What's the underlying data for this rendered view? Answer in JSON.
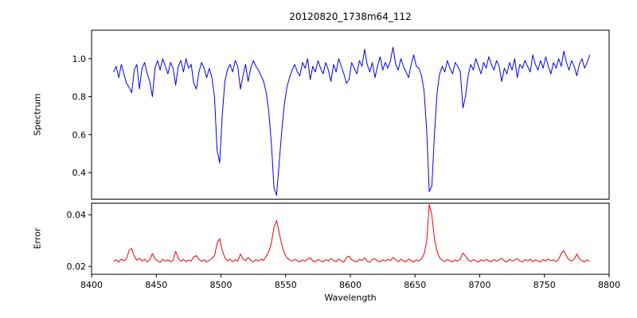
{
  "chart_data": {
    "type": "line",
    "title": "20120820_1738m64_112",
    "xlabel": "Wavelength",
    "xlim": [
      8400,
      8800
    ],
    "x_ticks": [
      8400,
      8450,
      8500,
      8550,
      8600,
      8650,
      8700,
      8750,
      8800
    ],
    "x_start": 8417,
    "x_step": 2,
    "legend": "none",
    "grid": false,
    "subplots": [
      {
        "ylabel": "Spectrum",
        "color": "#0000ee",
        "ylim": [
          0.26,
          1.15
        ],
        "y_ticks": [
          0.4,
          0.6,
          0.8,
          1.0
        ],
        "y_tick_labels": [
          "0.4",
          "0.6",
          "0.8",
          "1.0"
        ],
        "values": [
          0.93,
          0.96,
          0.9,
          0.97,
          0.92,
          0.87,
          0.85,
          0.82,
          0.94,
          0.97,
          0.84,
          0.95,
          0.98,
          0.92,
          0.88,
          0.8,
          0.95,
          0.99,
          0.94,
          1.0,
          0.96,
          0.92,
          0.98,
          0.95,
          0.86,
          0.96,
          0.99,
          0.93,
          1.0,
          0.95,
          0.97,
          0.87,
          0.84,
          0.93,
          0.98,
          0.95,
          0.9,
          0.95,
          0.9,
          0.8,
          0.52,
          0.45,
          0.7,
          0.88,
          0.94,
          0.97,
          0.93,
          0.99,
          0.96,
          0.84,
          0.91,
          0.97,
          0.88,
          0.95,
          0.99,
          0.96,
          0.94,
          0.91,
          0.88,
          0.82,
          0.72,
          0.55,
          0.32,
          0.28,
          0.45,
          0.62,
          0.76,
          0.85,
          0.9,
          0.94,
          0.97,
          0.93,
          0.91,
          0.98,
          0.95,
          1.0,
          0.89,
          0.96,
          0.93,
          0.99,
          0.95,
          0.92,
          0.98,
          0.94,
          0.88,
          0.97,
          0.93,
          1.0,
          0.96,
          0.92,
          0.87,
          0.89,
          0.98,
          0.95,
          0.92,
          0.99,
          0.96,
          1.05,
          0.97,
          0.93,
          0.98,
          0.9,
          0.96,
          1.01,
          0.94,
          0.98,
          0.95,
          0.99,
          1.06,
          0.97,
          0.94,
          1.0,
          0.96,
          0.93,
          0.9,
          0.97,
          1.02,
          0.96,
          0.95,
          0.91,
          0.83,
          0.62,
          0.3,
          0.33,
          0.6,
          0.82,
          0.92,
          0.96,
          0.93,
          0.99,
          0.95,
          0.92,
          0.98,
          0.96,
          0.93,
          0.74,
          0.8,
          0.91,
          0.97,
          0.94,
          1.0,
          0.96,
          0.92,
          0.98,
          0.95,
          1.01,
          0.97,
          0.94,
          0.99,
          0.96,
          0.88,
          0.95,
          0.92,
          0.98,
          0.94,
          1.0,
          0.9,
          0.97,
          0.95,
          0.99,
          0.96,
          0.93,
          1.02,
          0.97,
          0.94,
          0.99,
          0.95,
          1.01,
          0.96,
          0.92,
          0.98,
          0.95,
          1.0,
          0.96,
          1.04,
          0.98,
          0.94,
          0.99,
          0.96,
          0.91,
          0.97,
          1.0,
          0.95,
          0.98,
          1.02
        ]
      },
      {
        "ylabel": "Error",
        "color": "#ee0000",
        "ylim": [
          0.017,
          0.0445
        ],
        "y_ticks": [
          0.02,
          0.04
        ],
        "y_tick_labels": [
          "0.02",
          "0.04"
        ],
        "values": [
          0.022,
          0.0226,
          0.0217,
          0.0229,
          0.0222,
          0.023,
          0.0262,
          0.027,
          0.024,
          0.0224,
          0.0232,
          0.0221,
          0.0228,
          0.0217,
          0.0226,
          0.025,
          0.023,
          0.0222,
          0.0216,
          0.0228,
          0.0221,
          0.0226,
          0.0218,
          0.0224,
          0.0258,
          0.0232,
          0.022,
          0.0227,
          0.0219,
          0.0225,
          0.0221,
          0.0238,
          0.0242,
          0.0228,
          0.022,
          0.0226,
          0.0218,
          0.0224,
          0.023,
          0.0242,
          0.0288,
          0.0308,
          0.0262,
          0.0234,
          0.0222,
          0.0228,
          0.0219,
          0.0226,
          0.0221,
          0.0248,
          0.023,
          0.0222,
          0.0235,
          0.0224,
          0.0218,
          0.0227,
          0.0221,
          0.0228,
          0.0224,
          0.024,
          0.0258,
          0.0292,
          0.0352,
          0.0378,
          0.033,
          0.0284,
          0.0252,
          0.0234,
          0.0226,
          0.0221,
          0.0228,
          0.0222,
          0.0218,
          0.0226,
          0.0221,
          0.0229,
          0.0233,
          0.0222,
          0.0218,
          0.0227,
          0.0222,
          0.0218,
          0.0227,
          0.0221,
          0.0231,
          0.0224,
          0.0219,
          0.0228,
          0.0222,
          0.0217,
          0.0235,
          0.024,
          0.0226,
          0.0221,
          0.0218,
          0.0228,
          0.0223,
          0.0234,
          0.0221,
          0.0217,
          0.0227,
          0.023,
          0.0222,
          0.0218,
          0.0226,
          0.0221,
          0.0228,
          0.0223,
          0.0235,
          0.0226,
          0.0219,
          0.0228,
          0.0222,
          0.0218,
          0.0229,
          0.0223,
          0.0217,
          0.0226,
          0.0222,
          0.023,
          0.0248,
          0.0298,
          0.044,
          0.0398,
          0.0308,
          0.0258,
          0.0234,
          0.0224,
          0.0219,
          0.0227,
          0.0222,
          0.0218,
          0.0226,
          0.0221,
          0.023,
          0.0252,
          0.024,
          0.0226,
          0.0219,
          0.0227,
          0.0222,
          0.0217,
          0.0226,
          0.0221,
          0.0228,
          0.0222,
          0.0218,
          0.0227,
          0.0221,
          0.0226,
          0.0232,
          0.0222,
          0.0218,
          0.0228,
          0.0221,
          0.0226,
          0.023,
          0.0222,
          0.0217,
          0.0227,
          0.0221,
          0.0228,
          0.0219,
          0.0226,
          0.0222,
          0.0217,
          0.0227,
          0.0221,
          0.0229,
          0.0222,
          0.0226,
          0.0219,
          0.0228,
          0.025,
          0.0262,
          0.024,
          0.0226,
          0.0221,
          0.0228,
          0.0248,
          0.023,
          0.0222,
          0.0218,
          0.0226,
          0.0221
        ]
      }
    ]
  }
}
